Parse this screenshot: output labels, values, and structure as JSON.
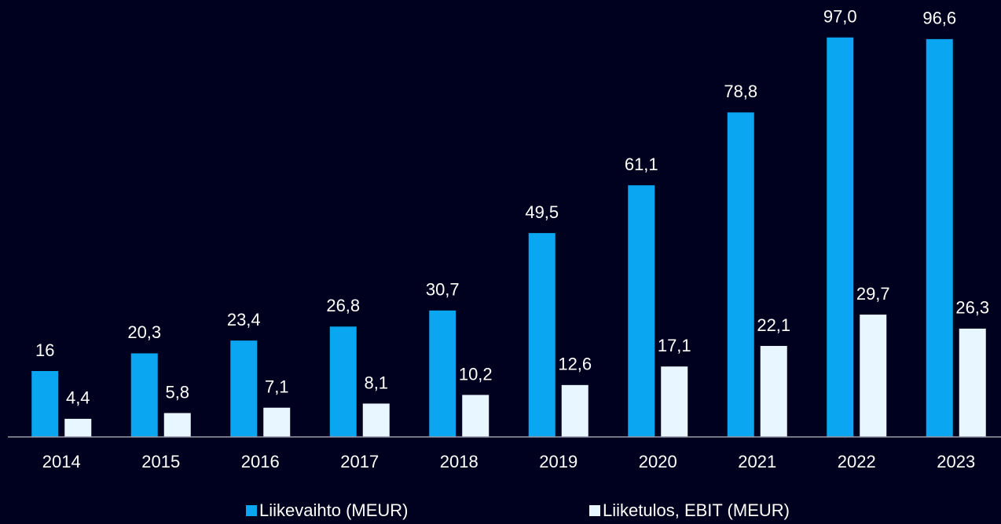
{
  "chart_data": {
    "type": "bar",
    "categories": [
      "2014",
      "2015",
      "2016",
      "2017",
      "2018",
      "2019",
      "2020",
      "2021",
      "2022",
      "2023"
    ],
    "series": [
      {
        "name": "Liikevaihto (MEUR)",
        "color": "#0aa6f2",
        "values": [
          16,
          20.3,
          23.4,
          26.8,
          30.7,
          49.5,
          61.1,
          78.8,
          97.0,
          96.6
        ],
        "value_labels": [
          "16",
          "20,3",
          "23,4",
          "26,8",
          "30,7",
          "49,5",
          "61,1",
          "78,8",
          "97,0",
          "96,6"
        ]
      },
      {
        "name": "Liiketulos, EBIT (MEUR)",
        "color": "#e8f7ff",
        "values": [
          4.4,
          5.8,
          7.1,
          8.1,
          10.2,
          12.6,
          17.1,
          22.1,
          29.7,
          26.3
        ],
        "value_labels": [
          "4,4",
          "5,8",
          "7,1",
          "8,1",
          "10,2",
          "12,6",
          "17,1",
          "22,1",
          "29,7",
          "26,3"
        ]
      }
    ],
    "ylim": [
      0,
      100
    ]
  }
}
